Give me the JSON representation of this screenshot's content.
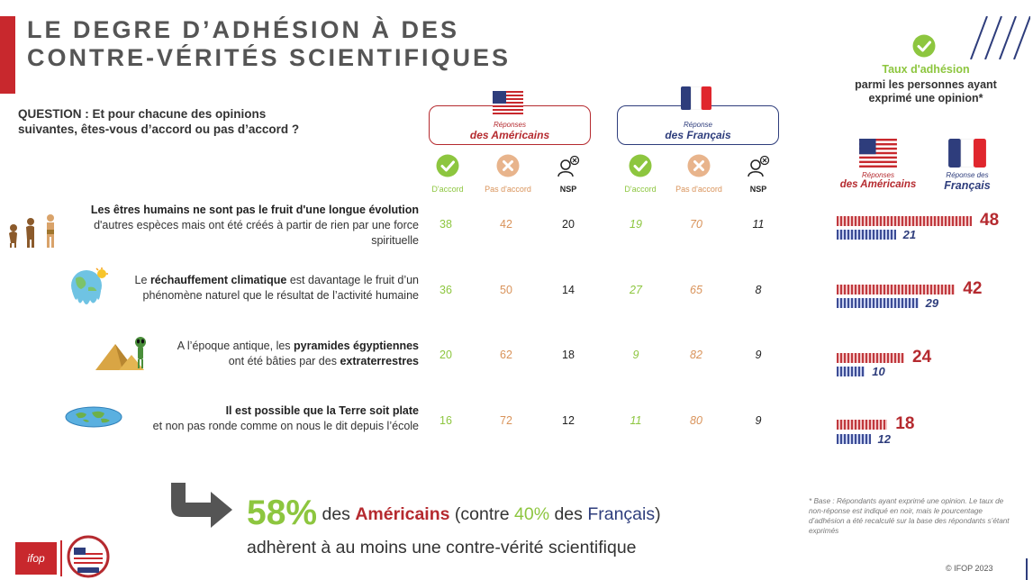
{
  "title": {
    "line1": "LE DEGRE D’ADHÉSION À DES",
    "line2": "CONTRE-VÉRITÉS SCIENTIFIQUES"
  },
  "question": {
    "line1": "QUESTION : Et pour chacune des opinions",
    "line2": "suivantes, êtes-vous d’accord ou pas d’accord ?"
  },
  "groups": {
    "us": {
      "line1": "Réponses",
      "line2": "des Américains",
      "flag": "us-flag-icon"
    },
    "fr": {
      "line1": "Réponse",
      "line2": "des Français",
      "flag": "fr-flag-icon"
    }
  },
  "columns": {
    "agree": "D'accord",
    "disagree": "Pas d'accord",
    "nsp": "NSP"
  },
  "adhesion_header": {
    "title": "Taux d'adhésion",
    "subtitle_line1": "parmi les personnes ayant",
    "subtitle_line2": "exprimé une opinion*",
    "us_label_line1": "Réponses",
    "us_label_line2": "des Américains",
    "fr_label_line1": "Réponse des",
    "fr_label_line2": "Français"
  },
  "statements": [
    {
      "icon": "evolution-icon",
      "parts": [
        {
          "b": true,
          "t": "Les êtres humains ne sont pas le fruit d'une longue évolution"
        },
        {
          "br": true
        },
        {
          "b": false,
          "t": "d'autres espèces mais ont été créés à partir de rien par une force"
        },
        {
          "br": true
        },
        {
          "b": false,
          "t": "spirituelle"
        }
      ]
    },
    {
      "icon": "melting-earth-icon",
      "parts": [
        {
          "b": false,
          "t": "Le "
        },
        {
          "b": true,
          "t": "réchauffement climatique"
        },
        {
          "b": false,
          "t": " est davantage le fruit d’un"
        },
        {
          "br": true
        },
        {
          "b": false,
          "t": "phénomène naturel que le résultat de l’activité humaine"
        }
      ]
    },
    {
      "icon": "pyramids-alien-icon",
      "parts": [
        {
          "b": false,
          "t": "A l’époque antique, les "
        },
        {
          "b": true,
          "t": "pyramides égyptiennes"
        },
        {
          "br": true
        },
        {
          "b": false,
          "t": "ont été bâties par des "
        },
        {
          "b": true,
          "t": "extraterrestres"
        }
      ]
    },
    {
      "icon": "flat-earth-icon",
      "parts": [
        {
          "b": true,
          "t": "Il est possible que la Terre soit plate"
        },
        {
          "br": true
        },
        {
          "b": false,
          "t": "et non pas ronde comme on nous le dit depuis l’école"
        }
      ]
    }
  ],
  "chart_data": [
    {
      "type": "table",
      "columns": [
        "US D'accord",
        "US Pas d'accord",
        "US NSP",
        "FR D'accord",
        "FR Pas d'accord",
        "FR NSP"
      ],
      "rows": [
        {
          "us": [
            38,
            42,
            20
          ],
          "fr": [
            19,
            70,
            11
          ]
        },
        {
          "us": [
            36,
            50,
            14
          ],
          "fr": [
            27,
            65,
            8
          ]
        },
        {
          "us": [
            20,
            62,
            18
          ],
          "fr": [
            9,
            82,
            9
          ]
        },
        {
          "us": [
            16,
            72,
            12
          ],
          "fr": [
            11,
            80,
            9
          ]
        }
      ]
    },
    {
      "type": "bar",
      "orientation": "horizontal",
      "series": [
        {
          "name": "des Américains",
          "values": [
            48,
            42,
            24,
            18
          ],
          "color": "#b52a2f"
        },
        {
          "name": "Français",
          "values": [
            21,
            29,
            10,
            12
          ],
          "color": "#2e3d7c"
        }
      ]
    }
  ],
  "conclusion": {
    "pct": "58%",
    "t1": " des ",
    "americans": "Américains",
    "t2": " (contre ",
    "pct2": "40%",
    "t3": " des ",
    "french": "Français",
    "t4": ")",
    "line2": "adhèrent à au moins une contre-vérité scientifique"
  },
  "footnote": "* Base : Répondants ayant exprimé une opinion. Le taux de non-réponse est indiqué en noir, mais le pourcentage d’adhésion a été recalculé sur la base des répondants s’étant exprimés",
  "copyright": "© IFOP 2023",
  "logo": "ifop",
  "seal": "usa-seal-icon",
  "colors": {
    "red": "#c8282d",
    "green": "#8dc63f",
    "orange": "#d9935a",
    "navy": "#2e3d7c"
  }
}
